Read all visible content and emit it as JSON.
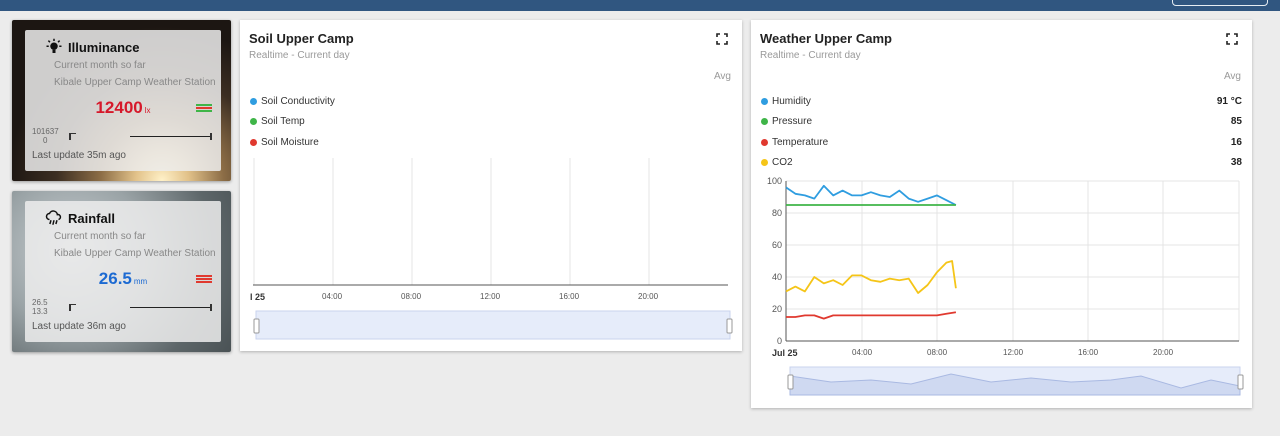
{
  "colors": {
    "topbar": "#305680",
    "illuminance_value": "#d6182a",
    "rainfall_value": "#1c6ad2",
    "series_blue": "#2f9de0",
    "series_green": "#3fb548",
    "series_red": "#e0392f",
    "series_yellow": "#f5c518"
  },
  "illuminance": {
    "title": "Illuminance",
    "icon": "lightbulb-icon",
    "subtitle": "Current month so far",
    "station": "Kibale Upper Camp Weather Station",
    "value": "12400",
    "unit": "lx",
    "range_max": "101637",
    "range_min": "0",
    "last_update": "Last update 35m ago"
  },
  "rainfall": {
    "title": "Rainfall",
    "icon": "rain-cloud-icon",
    "subtitle": "Current month so far",
    "station": "Kibale Upper Camp Weather Station",
    "value": "26.5",
    "unit": "mm",
    "range_max": "26.5",
    "range_min": "13.3",
    "last_update": "Last update 36m ago"
  },
  "soil_panel": {
    "title": "Soil Upper Camp",
    "subtitle": "Realtime - Current day",
    "avg_label": "Avg",
    "legend": [
      {
        "name": "Soil Conductivity",
        "color": "#2f9de0"
      },
      {
        "name": "Soil Temp",
        "color": "#3fb548"
      },
      {
        "name": "Soil Moisture",
        "color": "#e0392f"
      }
    ],
    "x_ticks": [
      "l 25",
      "04:00",
      "08:00",
      "12:00",
      "16:00",
      "20:00"
    ]
  },
  "weather_panel": {
    "title": "Weather Upper Camp",
    "subtitle": "Realtime - Current day",
    "avg_label": "Avg",
    "legend": [
      {
        "name": "Humidity",
        "value": "91 °C",
        "color": "#2f9de0"
      },
      {
        "name": "Pressure",
        "value": "85",
        "color": "#3fb548"
      },
      {
        "name": "Temperature",
        "value": "16",
        "color": "#e0392f"
      },
      {
        "name": "CO2",
        "value": "38",
        "color": "#f5c518"
      }
    ],
    "x_ticks": [
      "Jul 25",
      "04:00",
      "08:00",
      "12:00",
      "16:00",
      "20:00"
    ],
    "y_ticks": [
      "100",
      "80",
      "60",
      "40",
      "20",
      "0"
    ]
  },
  "chart_data": {
    "type": "line",
    "x_unit": "hour of day (Jul 25)",
    "xlim": [
      0,
      24
    ],
    "ylim": [
      0,
      100
    ],
    "series": [
      {
        "name": "Humidity",
        "color": "#2f9de0",
        "x": [
          0,
          0.5,
          1,
          1.5,
          2,
          2.5,
          3,
          3.5,
          4,
          4.5,
          5,
          5.5,
          6,
          6.5,
          7,
          7.5,
          8,
          8.5,
          9
        ],
        "y": [
          96,
          92,
          91,
          89,
          97,
          91,
          94,
          91,
          91,
          93,
          91,
          90,
          94,
          89,
          87,
          89,
          91,
          88,
          85
        ]
      },
      {
        "name": "Pressure",
        "color": "#3fb548",
        "x": [
          0,
          1,
          2,
          3,
          4,
          5,
          6,
          7,
          8,
          9
        ],
        "y": [
          85,
          85,
          85,
          85,
          85,
          85,
          85,
          85,
          85,
          85
        ]
      },
      {
        "name": "Temperature",
        "color": "#e0392f",
        "x": [
          0,
          0.5,
          1,
          1.5,
          2,
          2.5,
          3,
          3.5,
          4,
          4.5,
          5,
          5.5,
          6,
          6.5,
          7,
          7.5,
          8,
          8.5,
          9
        ],
        "y": [
          15,
          15,
          16,
          16,
          14,
          16,
          16,
          16,
          16,
          16,
          16,
          16,
          16,
          16,
          16,
          16,
          16,
          17,
          18
        ]
      },
      {
        "name": "CO2",
        "color": "#f5c518",
        "x": [
          0,
          0.5,
          1,
          1.5,
          2,
          2.5,
          3,
          3.5,
          4,
          4.5,
          5,
          5.5,
          6,
          6.5,
          7,
          7.5,
          8,
          8.5,
          8.8,
          9
        ],
        "y": [
          31,
          34,
          31,
          40,
          36,
          38,
          35,
          41,
          41,
          38,
          37,
          39,
          38,
          39,
          30,
          35,
          43,
          49,
          50,
          33
        ]
      }
    ]
  }
}
